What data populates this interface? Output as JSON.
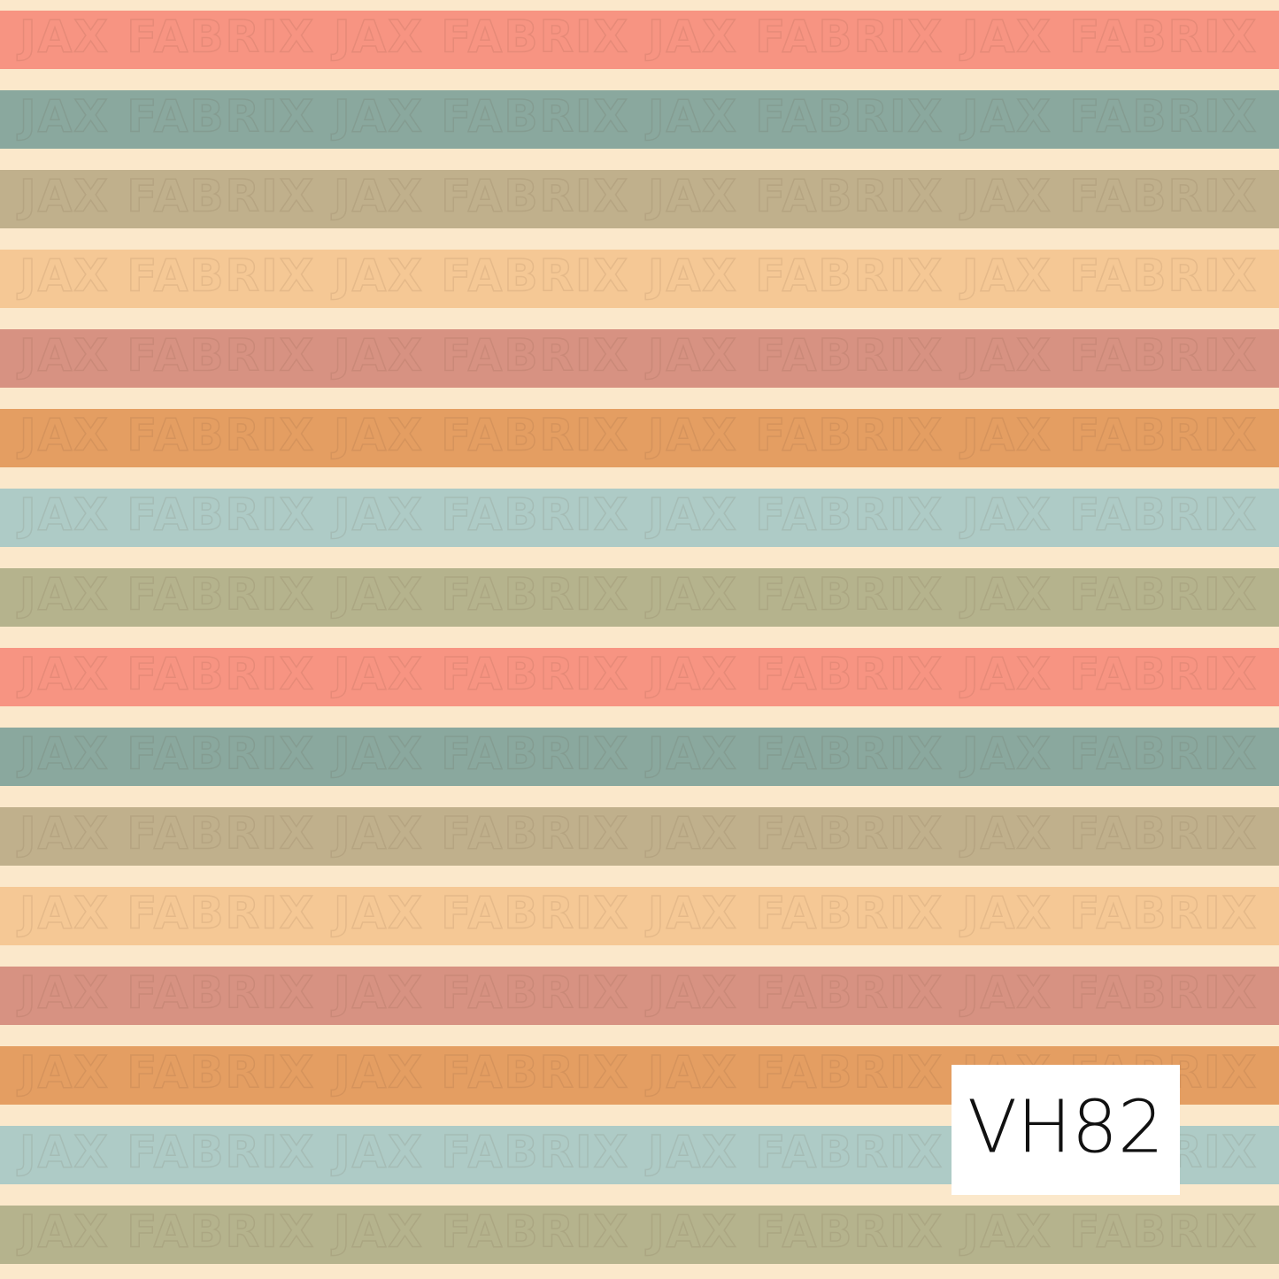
{
  "watermark": "JAX FABRIX",
  "label": "VH82"
}
